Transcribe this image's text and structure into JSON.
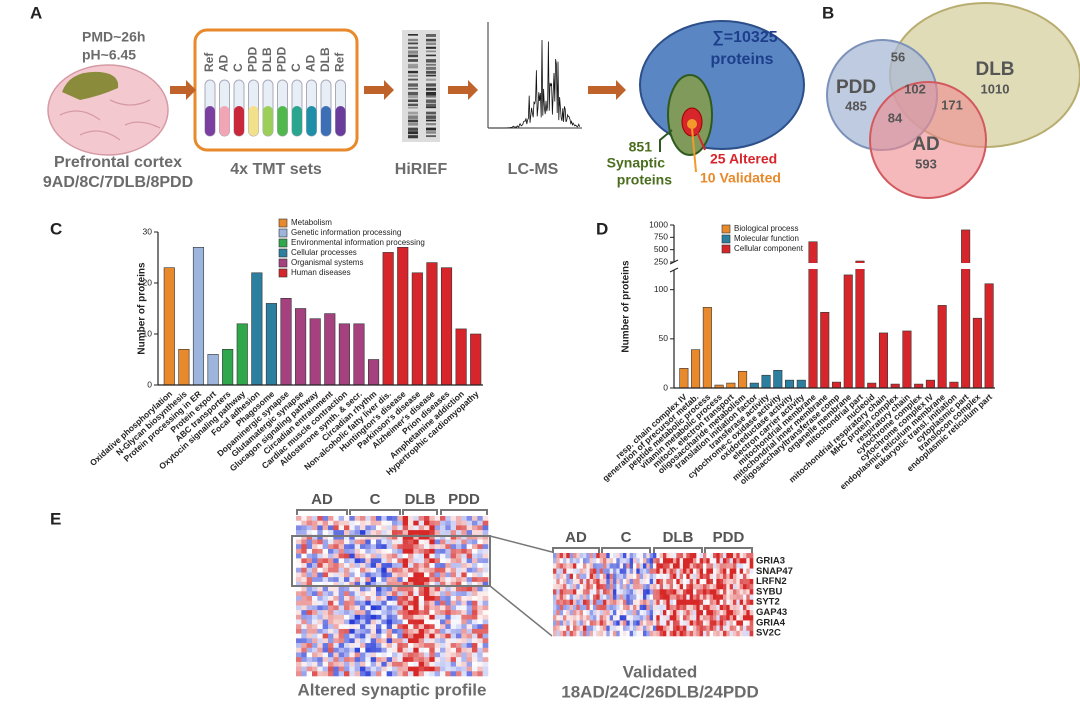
{
  "panel_a": {
    "label": "A",
    "pmd": "PMD~26h",
    "ph": "pH~6.45",
    "tissue": "Prefrontal cortex",
    "cohort": "9AD/8C/7DLB/8PDD",
    "tubes": [
      "Ref",
      "AD",
      "C",
      "PDD",
      "DLB",
      "PDD",
      "C",
      "AD",
      "DLB",
      "Ref"
    ],
    "tmt": "4x TMT sets",
    "hirief": "HiRIEF",
    "lcms": "LC-MS",
    "total": "∑=10325",
    "total_unit": "proteins",
    "synaptic_count": "851",
    "synaptic_label_1": "Synaptic",
    "synaptic_label_2": "proteins",
    "altered": "25 Altered",
    "validated": "10 Validated"
  },
  "panel_b": {
    "label": "B",
    "sets": [
      {
        "name": "PDD",
        "count": 485
      },
      {
        "name": "DLB",
        "count": 1010
      },
      {
        "name": "AD",
        "count": 593
      }
    ],
    "overlaps": {
      "pdd_dlb": 56,
      "all": 102,
      "dlb_ad": 171,
      "pdd_ad": 84
    }
  },
  "chart_data": [
    {
      "panel_label": "C",
      "type": "bar",
      "ylabel": "Number of proteins",
      "categories": [
        "Oxidative phosphorylation",
        "N-Glycan biosynthesis",
        "Protein processing in ER",
        "Protein export",
        "ABC transporters",
        "Oxytocin signaling pathway",
        "Focal adhesion",
        "Phagosome",
        "Dopaminergic synapse",
        "Glutamatergic synapse",
        "Glucagon signaling pathway",
        "Circadian entrainment",
        "Cardiac muscle contraction",
        "Aldosterone synth. & secr.",
        "Circadian rhythm",
        "Non-alcoholic fatty liver dis.",
        "Huntington's disease",
        "Parkinson's disease",
        "Alzheimer's disease",
        "Prion diseases",
        "Amphetamine addiction",
        "Hypertrophic cardiomyopathy"
      ],
      "series": [
        {
          "name": "Metabolism",
          "color": "#e8892b",
          "values": [
            23,
            7,
            null,
            null,
            null,
            null,
            null,
            null,
            null,
            null,
            null,
            null,
            null,
            null,
            null,
            null,
            null,
            null,
            null,
            null,
            null,
            null
          ]
        },
        {
          "name": "Genetic information processing",
          "color": "#9db5dc",
          "values": [
            null,
            null,
            27,
            6,
            null,
            null,
            null,
            null,
            null,
            null,
            null,
            null,
            null,
            null,
            null,
            null,
            null,
            null,
            null,
            null,
            null,
            null
          ]
        },
        {
          "name": "Environmental information processing",
          "color": "#2ea84a",
          "values": [
            null,
            null,
            null,
            null,
            7,
            12,
            null,
            null,
            null,
            null,
            null,
            null,
            null,
            null,
            null,
            null,
            null,
            null,
            null,
            null,
            null,
            null
          ]
        },
        {
          "name": "Cellular processes",
          "color": "#2d7fa0",
          "values": [
            null,
            null,
            null,
            null,
            null,
            null,
            22,
            16,
            null,
            null,
            null,
            null,
            null,
            null,
            null,
            null,
            null,
            null,
            null,
            null,
            null,
            null
          ]
        },
        {
          "name": "Organismal systems",
          "color": "#a4417e",
          "values": [
            null,
            null,
            null,
            null,
            null,
            null,
            null,
            null,
            17,
            15,
            13,
            14,
            12,
            12,
            5,
            null,
            null,
            null,
            null,
            null,
            null,
            null
          ]
        },
        {
          "name": "Human diseases",
          "color": "#d7262b",
          "values": [
            null,
            null,
            null,
            null,
            null,
            null,
            null,
            null,
            null,
            null,
            null,
            null,
            null,
            null,
            null,
            26,
            27,
            22,
            24,
            23,
            11,
            10
          ]
        }
      ],
      "ylim": [
        0,
        30
      ],
      "yticks": [
        0,
        10,
        20,
        30
      ]
    },
    {
      "panel_label": "D",
      "type": "bar",
      "ylabel": "Number of proteins",
      "categories": [
        "resp. chain complex IV",
        "generation of precursor metab.",
        "peptide metabolic process",
        "vitamin metabolic process",
        "mitoch. electron transport",
        "oligosaccharide metabolism",
        "translation initiation factor",
        "transferase activity",
        "cytochrome-c oxidase activity",
        "oxidoreductase activity",
        "electron carrier activity",
        "mitochondrial membrane",
        "mitochondrial inner membrane",
        "oligosaccharyltransferase comp",
        "organelle membrane",
        "mitochondrial part",
        "nucleoid",
        "mitochondrial respiratory chain",
        "MHC protein complex",
        "respiratory chain",
        "cytochrome complex",
        "cytochrome complex IV",
        "endoplasmic reticulum membrane",
        "eukaryotic transl. initiation",
        "cytoplasmic part",
        "translocon complex",
        "endoplasmic reticulum part"
      ],
      "series": [
        {
          "name": "Biological process",
          "color": "#e8892b",
          "values": [
            20,
            39,
            82,
            3,
            5,
            17,
            null,
            null,
            null,
            null,
            null,
            null,
            null,
            null,
            null,
            null,
            null,
            null,
            null,
            null,
            null,
            null,
            null,
            null,
            null,
            null,
            null
          ]
        },
        {
          "name": "Molecular function",
          "color": "#2d7fa0",
          "values": [
            null,
            null,
            null,
            null,
            null,
            null,
            5,
            13,
            18,
            8,
            8,
            null,
            null,
            null,
            null,
            null,
            null,
            null,
            null,
            null,
            null,
            null,
            null,
            null,
            null,
            null,
            null
          ]
        },
        {
          "name": "Cellular component",
          "color": "#d7262b",
          "values": [
            null,
            null,
            null,
            null,
            null,
            null,
            null,
            null,
            null,
            null,
            null,
            660,
            77,
            6,
            115,
            270,
            5,
            56,
            4,
            58,
            4,
            8,
            84,
            6,
            900,
            71,
            106
          ]
        }
      ],
      "ylim": [
        0,
        1000
      ],
      "ybreak": [
        120,
        250
      ],
      "yticks": [
        0,
        50,
        100,
        250,
        500,
        750,
        1000
      ]
    }
  ],
  "panel_e": {
    "label": "E",
    "groups": [
      "AD",
      "C",
      "DLB",
      "PDD"
    ],
    "caption": "Altered synaptic profile",
    "zoom_groups": [
      "AD",
      "C",
      "DLB",
      "PDD"
    ],
    "genes": [
      "GRIA3",
      "SNAP47",
      "LRFN2",
      "SYBU",
      "SYT2",
      "GAP43",
      "GRIA4",
      "SV2C"
    ],
    "validated": "Validated",
    "validated_cohort": "18AD/24C/26DLB/24PDD"
  }
}
